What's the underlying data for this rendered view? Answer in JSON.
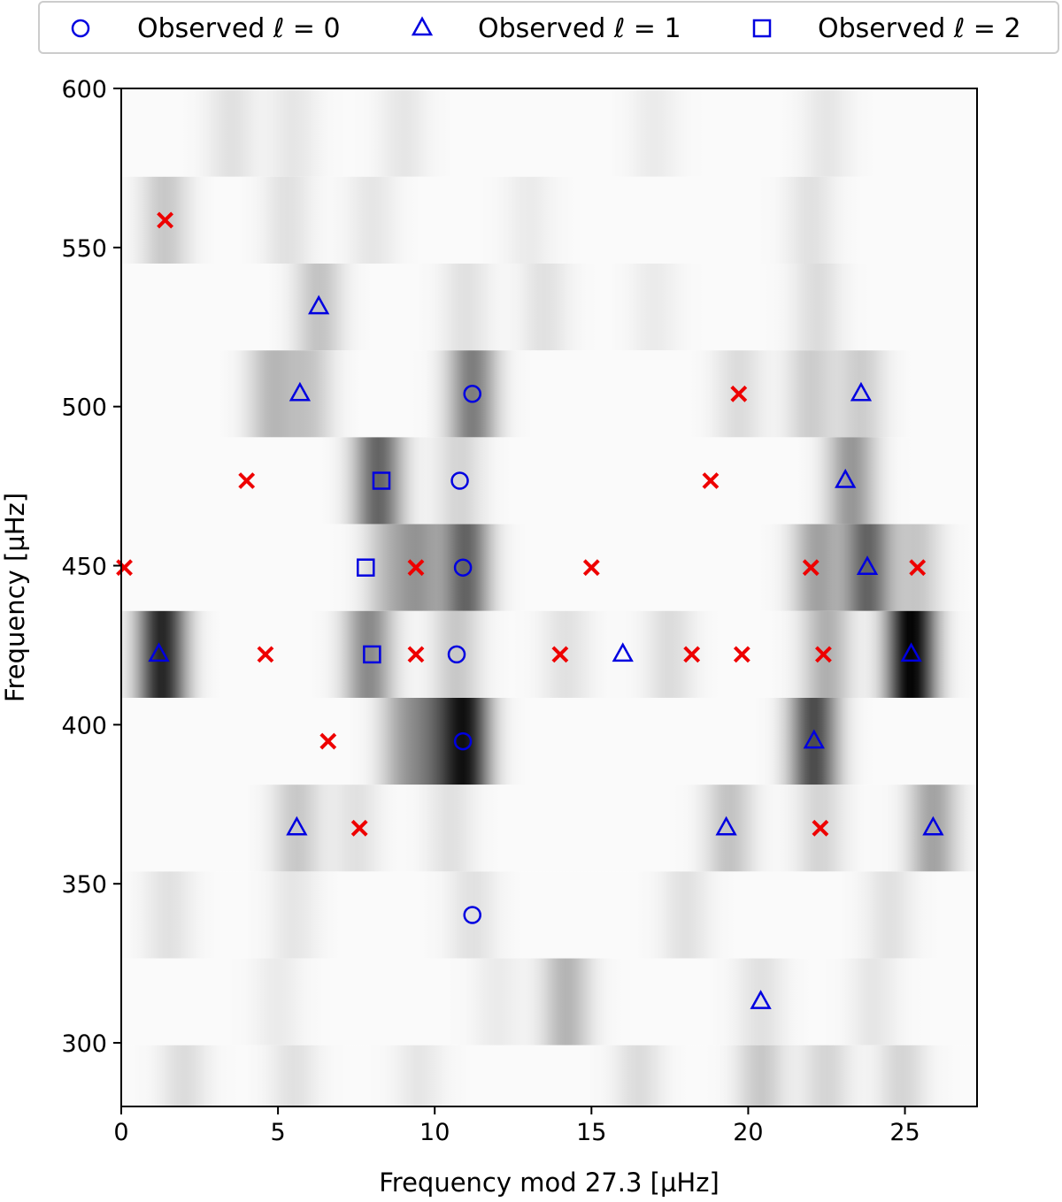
{
  "chart_data": {
    "type": "scatter",
    "title": "",
    "xlabel": "Frequency mod 27.3 [µHz]",
    "ylabel": "Frequency [µHz]",
    "xlim": [
      0,
      27.3
    ],
    "ylim": [
      280,
      600
    ],
    "x_ticks": [
      0,
      5,
      10,
      15,
      20,
      25
    ],
    "y_ticks": [
      300,
      350,
      400,
      450,
      500,
      550,
      600
    ],
    "x_tick_labels": [
      "0",
      "5",
      "10",
      "15",
      "20",
      "25"
    ],
    "y_tick_labels": [
      "300",
      "350",
      "400",
      "450",
      "500",
      "550",
      "600"
    ],
    "grid": false,
    "legend_position": "top",
    "background": {
      "type": "heatmap",
      "colormap": "greys",
      "bands": [
        {
          "y_center": 585.9,
          "peaks": [
            [
              3.5,
              0.1
            ],
            [
              5.5,
              0.08
            ],
            [
              9.0,
              0.08
            ],
            [
              17.0,
              0.06
            ],
            [
              22.5,
              0.08
            ]
          ]
        },
        {
          "y_center": 558.6,
          "peaks": [
            [
              1.4,
              0.2
            ],
            [
              5.3,
              0.1
            ],
            [
              8.0,
              0.08
            ],
            [
              13.0,
              0.06
            ],
            [
              22.0,
              0.1
            ]
          ]
        },
        {
          "y_center": 531.3,
          "peaks": [
            [
              6.3,
              0.22
            ],
            [
              11.0,
              0.1
            ],
            [
              13.5,
              0.1
            ],
            [
              17.0,
              0.06
            ],
            [
              22.2,
              0.12
            ]
          ]
        },
        {
          "y_center": 504.0,
          "peaks": [
            [
              4.8,
              0.25
            ],
            [
              6.0,
              0.2
            ],
            [
              11.2,
              0.5
            ],
            [
              19.7,
              0.12
            ],
            [
              22.0,
              0.18
            ],
            [
              23.6,
              0.18
            ]
          ]
        },
        {
          "y_center": 476.7,
          "peaks": [
            [
              8.2,
              0.6
            ],
            [
              10.8,
              0.15
            ],
            [
              23.3,
              0.4
            ]
          ]
        },
        {
          "y_center": 449.4,
          "peaks": [
            [
              8.5,
              0.22
            ],
            [
              9.5,
              0.35
            ],
            [
              11.0,
              0.6
            ],
            [
              22.2,
              0.35
            ],
            [
              23.8,
              0.6
            ],
            [
              25.4,
              0.2
            ]
          ]
        },
        {
          "y_center": 422.1,
          "peaks": [
            [
              1.3,
              0.85
            ],
            [
              7.9,
              0.45
            ],
            [
              10.7,
              0.2
            ],
            [
              14.2,
              0.1
            ],
            [
              17.5,
              0.12
            ],
            [
              22.5,
              0.3
            ],
            [
              25.2,
              1.0
            ]
          ]
        },
        {
          "y_center": 394.8,
          "peaks": [
            [
              9.0,
              0.3
            ],
            [
              10.0,
              0.4
            ],
            [
              11.0,
              0.85
            ],
            [
              22.1,
              0.7
            ]
          ]
        },
        {
          "y_center": 367.5,
          "peaks": [
            [
              5.6,
              0.2
            ],
            [
              7.5,
              0.1
            ],
            [
              10.5,
              0.1
            ],
            [
              19.4,
              0.22
            ],
            [
              22.3,
              0.15
            ],
            [
              25.9,
              0.35
            ]
          ]
        },
        {
          "y_center": 340.2,
          "peaks": [
            [
              1.5,
              0.1
            ],
            [
              5.5,
              0.08
            ],
            [
              11.2,
              0.1
            ],
            [
              18.0,
              0.1
            ],
            [
              24.5,
              0.1
            ]
          ]
        },
        {
          "y_center": 312.9,
          "peaks": [
            [
              5.0,
              0.06
            ],
            [
              12.0,
              0.06
            ],
            [
              14.2,
              0.28
            ],
            [
              20.4,
              0.1
            ],
            [
              24.0,
              0.08
            ]
          ]
        },
        {
          "y_center": 285.6,
          "peaks": [
            [
              2.0,
              0.12
            ],
            [
              5.5,
              0.1
            ],
            [
              9.5,
              0.08
            ],
            [
              16.5,
              0.12
            ],
            [
              20.4,
              0.2
            ],
            [
              22.5,
              0.15
            ],
            [
              24.9,
              0.15
            ]
          ]
        }
      ]
    },
    "series": [
      {
        "name": "Observed ℓ = 0",
        "marker": "circle",
        "color": "#0000e0",
        "points": [
          [
            11.2,
            504.0
          ],
          [
            10.8,
            476.7
          ],
          [
            10.9,
            449.4
          ],
          [
            10.7,
            422.1
          ],
          [
            10.9,
            394.8
          ],
          [
            11.2,
            340.2
          ]
        ]
      },
      {
        "name": "Observed ℓ = 1",
        "marker": "triangle",
        "color": "#0000e0",
        "points": [
          [
            6.3,
            531.3
          ],
          [
            5.7,
            504.0
          ],
          [
            23.6,
            504.0
          ],
          [
            23.1,
            476.7
          ],
          [
            23.8,
            449.4
          ],
          [
            1.2,
            422.1
          ],
          [
            16.0,
            422.1
          ],
          [
            25.2,
            422.1
          ],
          [
            22.1,
            394.8
          ],
          [
            5.6,
            367.5
          ],
          [
            19.3,
            367.5
          ],
          [
            25.9,
            367.5
          ],
          [
            20.4,
            312.9
          ]
        ]
      },
      {
        "name": "Observed ℓ = 2",
        "marker": "square",
        "color": "#0000e0",
        "points": [
          [
            8.3,
            476.7
          ],
          [
            7.8,
            449.4
          ],
          [
            8.0,
            422.1
          ]
        ]
      },
      {
        "marker": "x",
        "color": "#ee0000",
        "points": [
          [
            1.4,
            558.6
          ],
          [
            19.7,
            504.0
          ],
          [
            4.0,
            476.7
          ],
          [
            18.8,
            476.7
          ],
          [
            0.1,
            449.4
          ],
          [
            9.4,
            449.4
          ],
          [
            15.0,
            449.4
          ],
          [
            22.0,
            449.4
          ],
          [
            25.4,
            449.4
          ],
          [
            4.6,
            422.1
          ],
          [
            9.4,
            422.1
          ],
          [
            14.0,
            422.1
          ],
          [
            18.2,
            422.1
          ],
          [
            19.8,
            422.1
          ],
          [
            22.4,
            422.1
          ],
          [
            6.6,
            394.8
          ],
          [
            7.6,
            367.5
          ],
          [
            22.3,
            367.5
          ]
        ]
      }
    ],
    "legend": [
      {
        "marker": "circle",
        "label": "Observed ℓ = 0"
      },
      {
        "marker": "triangle",
        "label": "Observed ℓ = 1"
      },
      {
        "marker": "square",
        "label": "Observed ℓ = 2"
      }
    ]
  }
}
